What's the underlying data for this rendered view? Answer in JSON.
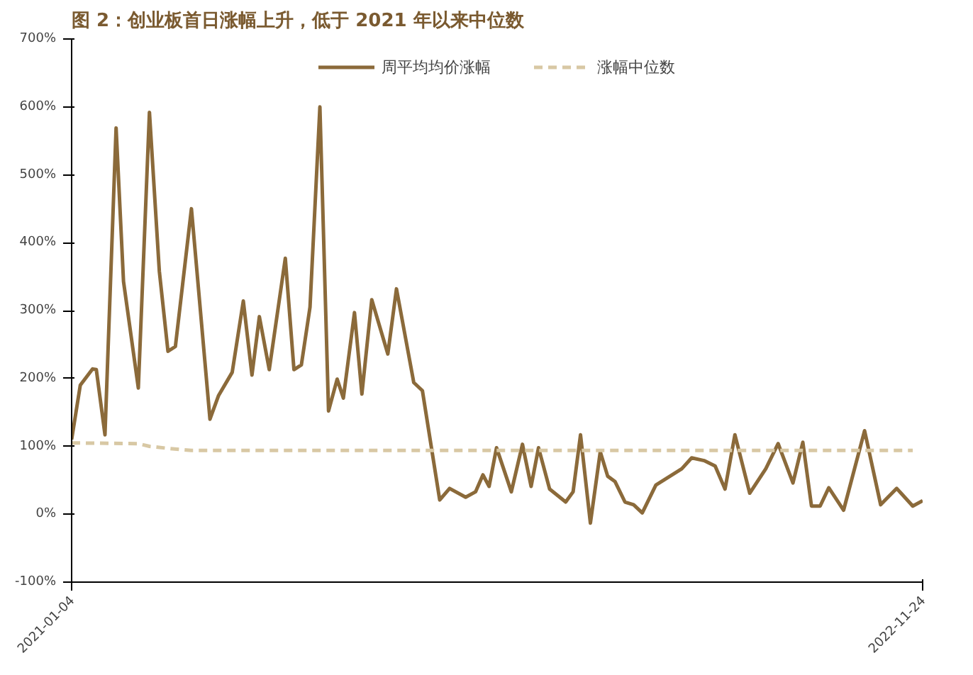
{
  "chart_data": {
    "type": "line",
    "title": "图 2：创业板首日涨幅上升，低于 2021 年以来中位数",
    "xlim": [
      "2021-01-04",
      "2022-11-24"
    ],
    "xticks": [
      {
        "value": "2021-01-04",
        "label": "2021-01-04"
      },
      {
        "value": "2022-11-24",
        "label": "2022-11-24"
      }
    ],
    "ylim": [
      -100,
      700
    ],
    "yticks": [
      {
        "value": -100,
        "label": "-100%"
      },
      {
        "value": 0,
        "label": "0%"
      },
      {
        "value": 100,
        "label": "100%"
      },
      {
        "value": 200,
        "label": "200%"
      },
      {
        "value": 300,
        "label": "300%"
      },
      {
        "value": 400,
        "label": "400%"
      },
      {
        "value": 500,
        "label": "500%"
      },
      {
        "value": 600,
        "label": "600%"
      },
      {
        "value": 700,
        "label": "700%"
      }
    ],
    "grid": false,
    "legend": "top",
    "marker": "none",
    "series": [
      {
        "name": "周平均均价涨幅",
        "color": "#8b6a3a",
        "line_style": "solid",
        "x": [
          "2021-01-04",
          "2021-01-11",
          "2021-01-21",
          "2021-01-24",
          "2021-01-31",
          "2021-02-09",
          "2021-02-15",
          "2021-02-27",
          "2021-03-08",
          "2021-03-16",
          "2021-03-23",
          "2021-03-29",
          "2021-04-11",
          "2021-04-26",
          "2021-05-03",
          "2021-05-14",
          "2021-05-23",
          "2021-05-30",
          "2021-06-05",
          "2021-06-13",
          "2021-06-26",
          "2021-07-03",
          "2021-07-09",
          "2021-07-16",
          "2021-07-24",
          "2021-07-31",
          "2021-08-07",
          "2021-08-12",
          "2021-08-21",
          "2021-08-27",
          "2021-09-04",
          "2021-09-17",
          "2021-09-24",
          "2021-10-08",
          "2021-10-15",
          "2021-10-29",
          "2021-11-06",
          "2021-11-19",
          "2021-11-27",
          "2021-12-03",
          "2021-12-08",
          "2021-12-14",
          "2021-12-26",
          "2022-01-04",
          "2022-01-11",
          "2022-01-17",
          "2022-01-26",
          "2022-02-08",
          "2022-02-14",
          "2022-02-20",
          "2022-02-28",
          "2022-03-08",
          "2022-03-14",
          "2022-03-20",
          "2022-03-28",
          "2022-04-04",
          "2022-04-11",
          "2022-04-22",
          "2022-05-13",
          "2022-05-21",
          "2022-05-31",
          "2022-06-09",
          "2022-06-17",
          "2022-06-25",
          "2022-07-07",
          "2022-07-20",
          "2022-07-30",
          "2022-08-11",
          "2022-08-19",
          "2022-08-26",
          "2022-09-02",
          "2022-09-09",
          "2022-09-21",
          "2022-10-08",
          "2022-10-21",
          "2022-11-03",
          "2022-11-16",
          "2022-11-24"
        ],
        "values": [
          110,
          190,
          214,
          213,
          117,
          569,
          343,
          186,
          592,
          358,
          240,
          247,
          450,
          140,
          175,
          209,
          314,
          205,
          291,
          213,
          377,
          213,
          220,
          305,
          600,
          152,
          199,
          171,
          297,
          177,
          316,
          236,
          332,
          194,
          182,
          21,
          38,
          25,
          33,
          58,
          41,
          98,
          33,
          103,
          41,
          98,
          37,
          18,
          33,
          117,
          -13,
          92,
          56,
          48,
          18,
          14,
          2,
          43,
          67,
          83,
          79,
          71,
          37,
          117,
          31,
          67,
          104,
          46,
          106,
          12,
          12,
          39,
          6,
          123,
          14,
          38,
          12,
          20
        ]
      },
      {
        "name": "涨幅中位数",
        "color": "#d8c8a4",
        "line_style": "dashed",
        "x": [
          "2021-01-04",
          "2021-02-27",
          "2021-03-08",
          "2021-03-23",
          "2021-04-11",
          "2022-11-16"
        ],
        "values": [
          105,
          104,
          100,
          97,
          94,
          94
        ]
      }
    ]
  }
}
